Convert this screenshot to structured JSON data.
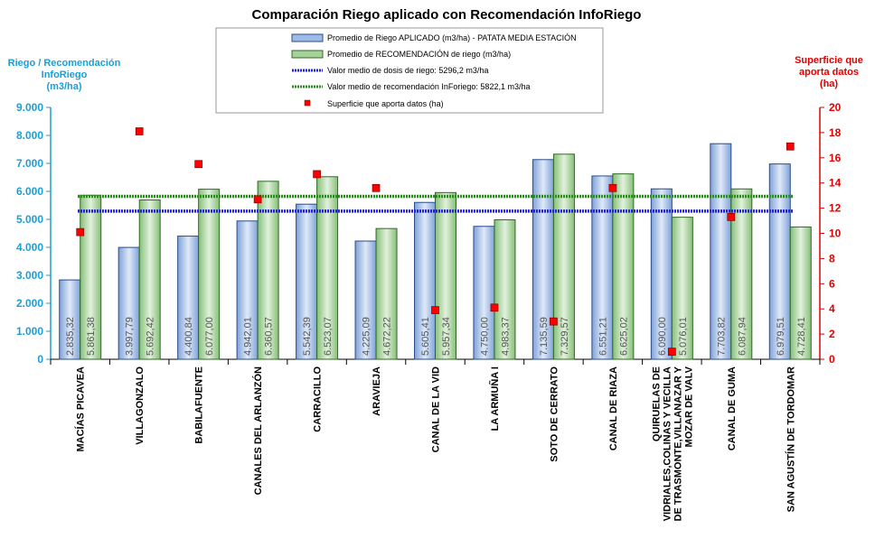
{
  "chart_data": {
    "type": "bar",
    "title": "Comparación Riego aplicado con Recomendación InfoRiego",
    "ylabel_left": [
      "Riego / Recomendación",
      "InfoRiego",
      "(m3/ha)"
    ],
    "ylabel_right": [
      "Superficie que",
      "aporta datos",
      "(ha)"
    ],
    "ylim_left": [
      0,
      9000
    ],
    "ylim_right": [
      0,
      20
    ],
    "y_ticks_left": [
      "0",
      "1.000",
      "2.000",
      "3.000",
      "4.000",
      "5.000",
      "6.000",
      "7.000",
      "8.000",
      "9.000"
    ],
    "y_ticks_right": [
      "0",
      "2",
      "4",
      "6",
      "8",
      "10",
      "12",
      "14",
      "16",
      "18",
      "20"
    ],
    "categories": [
      [
        "MACÍAS PICAVEA"
      ],
      [
        "VILLAGONZALO"
      ],
      [
        "BABILAFUENTE"
      ],
      [
        "CANALES DEL ARLANZÓN"
      ],
      [
        "CARRACILLO"
      ],
      [
        "ARAVIEJA"
      ],
      [
        "CANAL DE LA VID"
      ],
      [
        "LA ARMUÑA I"
      ],
      [
        "SOTO DE CERRATO"
      ],
      [
        "CANAL DE RIAZA"
      ],
      [
        "QUIRUELAS DE",
        "VIDRIALES,COLINAS Y VECILLA",
        "DE TRASMONTE,VILLANAZAR Y",
        "MOZAR DE VALV"
      ],
      [
        "CANAL DE GUMA"
      ],
      [
        "SAN AGUSTÍN DE TORDOMAR"
      ]
    ],
    "series": [
      {
        "name": "Promedio de Riego APLICADO (m3/ha) - PATATA MEDIA ESTACIÓN",
        "values": [
          2835.32,
          3997.79,
          4400.84,
          4942.01,
          5542.39,
          4225.09,
          5605.41,
          4750.0,
          7135.59,
          6551.21,
          6090.0,
          7703.82,
          6979.51
        ],
        "labels": [
          "2.835,32",
          "3.997,79",
          "4.400,84",
          "4.942,01",
          "5.542,39",
          "4.225,09",
          "5.605,41",
          "4.750,00",
          "7.135,59",
          "6.551,21",
          "6.090,00",
          "7.703,82",
          "6.979,51"
        ],
        "color": "#9dbbe6"
      },
      {
        "name": "Promedio de RECOMENDACIÓN de riego (m3/ha)",
        "values": [
          5861.38,
          5692.42,
          6077.0,
          6360.57,
          6523.07,
          4672.22,
          5957.34,
          4983.37,
          7329.57,
          6625.02,
          5076.01,
          6087.94,
          4728.41
        ],
        "labels": [
          "5.861,38",
          "5.692,42",
          "6.077,00",
          "6.360,57",
          "6.523,07",
          "4.672,22",
          "5.957,34",
          "4.983,37",
          "7.329,57",
          "6.625,02",
          "5.076,01",
          "6.087,94",
          "4.728,41"
        ],
        "color": "#a6d29a"
      }
    ],
    "lines": [
      {
        "name": "Valor medio de dosis de riego: 5296,2 m3/ha",
        "value": 5296.2,
        "color": "#2222cc"
      },
      {
        "name": "Valor medio de recomendación InForiego: 5822,1 m3/ha",
        "value": 5822.1,
        "color": "#2e8b22"
      }
    ],
    "points": {
      "name": "Superficie que aporta datos (ha)",
      "axis": "right",
      "values": [
        10.1,
        18.1,
        15.5,
        12.7,
        14.7,
        13.6,
        3.9,
        4.1,
        3.0,
        13.6,
        0.6,
        11.3,
        16.9
      ],
      "color": "#ff0000"
    },
    "grid": false,
    "legend_position": "top-center"
  }
}
